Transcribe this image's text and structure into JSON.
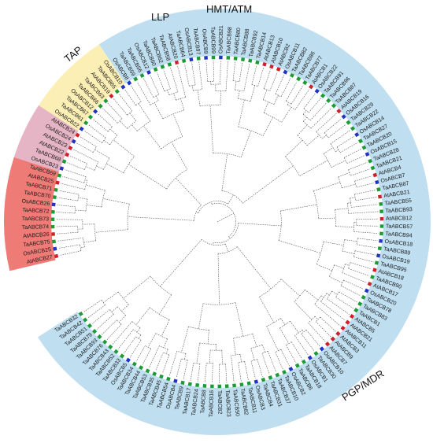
{
  "figure": {
    "groups": [
      {
        "label": "TAP",
        "color": "#ee7b76",
        "leaves": [
          "AtABCB27",
          "OsABCB25",
          "TaABCB75",
          "AtABCB26",
          "TaABCB74",
          "TaABCB73",
          "TaABCB72",
          "OsABCB26",
          "TaABCB70",
          "TaABCB71",
          "AtABCB25",
          "TaABCB69"
        ]
      },
      {
        "label": "LLP",
        "color": "#e5b5c6",
        "leaves": [
          "OsABCB23",
          "TaABCB68",
          "AtABCB22",
          "AtABCB23",
          "OsABCB24",
          "AtABCB24"
        ]
      },
      {
        "label": "HMT/ATM",
        "color": "#fbefb5",
        "leaves": [
          "OsABCB22",
          "TaABCB61",
          "TaABCB67",
          "OsABCB12",
          "TaABCB66",
          "TaABCB63",
          "AtABCB19",
          "TaABCB65",
          "OsABCB10"
        ]
      },
      {
        "label": "PGP/MDR",
        "color": "#bfdff1",
        "leaves": [
          "OsABCB8",
          "TaABCB59",
          "TaABCB56",
          "OsABCB12",
          "TaABCB60",
          "TaABCB62",
          "TaABCB58",
          "AtABCB20",
          "TaABCB64",
          "OsABCB13",
          "TaABCB97",
          "OsABCB9",
          "TaABCB99",
          "OsABCB21",
          "TaABCB98",
          "TaABCB80",
          "TaABCB88",
          "TaABCB92",
          "TaABCB14",
          "AtABCB13",
          "AtABCB10",
          "AtABCB2",
          "OsABCB11",
          "TaABCB82",
          "TaABCB86",
          "TaABCB77",
          "AtABCB1",
          "OsABCB22",
          "TaABCB91",
          "TaABCB96",
          "TaABCB87",
          "AtABCB19",
          "OsABCB16",
          "TaABCB29",
          "TaABCB22",
          "OsABCB14",
          "TaABCB27",
          "TaABCB20",
          "OsABCB15",
          "TaABCB28",
          "TaABCB21",
          "AtABCB4",
          "OsABCB7",
          "TaABCB87",
          "AtABCB21",
          "TaABCB55",
          "TaABCB93",
          "AtABCB12",
          "TaABCB57",
          "TaABCB94",
          "OsABCB18",
          "TaABCB89",
          "OsABCB19",
          "TaABCB95",
          "AtABCB18",
          "TaABCB90",
          "AtABCB17",
          "OsABCB20",
          "TaABCB78",
          "TaABCB83",
          "TaABCB1",
          "AtABCB5",
          "AtABCB21",
          "AtABCB11",
          "AtABCB3",
          "AtABCB9",
          "AtABCB7",
          "OsABCB10",
          "TaABCB30",
          "OsABCB1",
          "TaABCB18",
          "TaABCB6",
          "OsABCB2",
          "TaABCB10",
          "TaABCB37",
          "TaABCB31",
          "TaABCB4",
          "OsABCB3",
          "TaABCB11",
          "TaABCB82",
          "TaABCB50",
          "TaABCB23",
          "TaABCB2",
          "TaABCB16",
          "TaABCB8",
          "TaABCB24",
          "TaABCB17",
          "TaABCB9",
          "OsABCB4",
          "TaABCB54",
          "TaABCB45",
          "TaABCB35",
          "TaABCB53",
          "TaABCB44",
          "TaABCB34",
          "OsABCB5",
          "TaABCB33",
          "TaABCB52",
          "TaABCB43",
          "TaABCB76",
          "TaABCB93",
          "TaABCB79",
          "TaABCB51",
          "TaABCB42",
          "TaABCB32"
        ]
      }
    ],
    "marker_colors": {
      "At": "#d11f2a",
      "Os": "#2233c4",
      "Ta": "#1c9b34"
    }
  }
}
